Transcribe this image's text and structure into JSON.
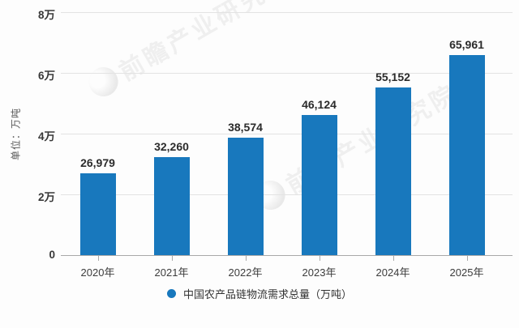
{
  "chart_data": {
    "type": "bar",
    "title": "",
    "categories": [
      "2020年",
      "2021年",
      "2022年",
      "2023年",
      "2024年",
      "2025年"
    ],
    "values": [
      26979,
      32260,
      38574,
      46124,
      55152,
      65961
    ],
    "value_labels": [
      "26,979",
      "32,260",
      "38,574",
      "46,124",
      "55,152",
      "65,961"
    ],
    "ylabel": "单位：万吨",
    "ytick_labels": [
      "8万",
      "6万",
      "4万",
      "2万",
      "0"
    ],
    "ylim": [
      0,
      80000
    ],
    "grid": true,
    "legend": "中国农产品链物流需求总量（万吨）",
    "legend_position": "bottom",
    "bar_color": "#1878bd",
    "grid_color": "#e3e3e3",
    "axis_color": "#a9a9a9"
  },
  "watermark": {
    "text": "前瞻产业研究院"
  }
}
